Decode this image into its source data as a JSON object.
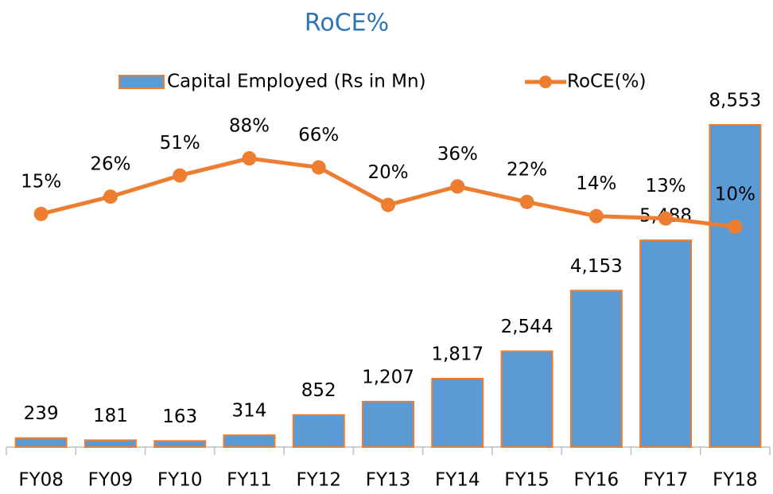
{
  "chart_data": {
    "type": "bar_line",
    "title": "RoCE%",
    "categories": [
      "FY08",
      "FY09",
      "FY10",
      "FY11",
      "FY12",
      "FY13",
      "FY14",
      "FY15",
      "FY16",
      "FY17",
      "FY18"
    ],
    "series": [
      {
        "name": "Capital Employed (Rs in Mn)",
        "type": "bar",
        "color": "#5b9bd5",
        "edge_color": "#ed7d31",
        "values": [
          239,
          181,
          163,
          314,
          852,
          1207,
          1817,
          2544,
          4153,
          5488,
          8553
        ],
        "value_labels": [
          "239",
          "181",
          "163",
          "314",
          "852",
          "1,207",
          "1,817",
          "2,544",
          "4,153",
          "5,488",
          "8,553"
        ]
      },
      {
        "name": "RoCE(%)",
        "type": "line",
        "axis": "y2",
        "color": "#ed7d31",
        "values": [
          15,
          26,
          51,
          88,
          66,
          20,
          36,
          22,
          14,
          13,
          10
        ],
        "value_labels": [
          "15%",
          "26%",
          "51%",
          "88%",
          "66%",
          "20%",
          "36%",
          "22%",
          "14%",
          "13%",
          "10%"
        ]
      }
    ],
    "ylim": [
      0,
      9000
    ],
    "y2lim": [
      1,
      100
    ],
    "y2log": true,
    "legend": "top"
  }
}
